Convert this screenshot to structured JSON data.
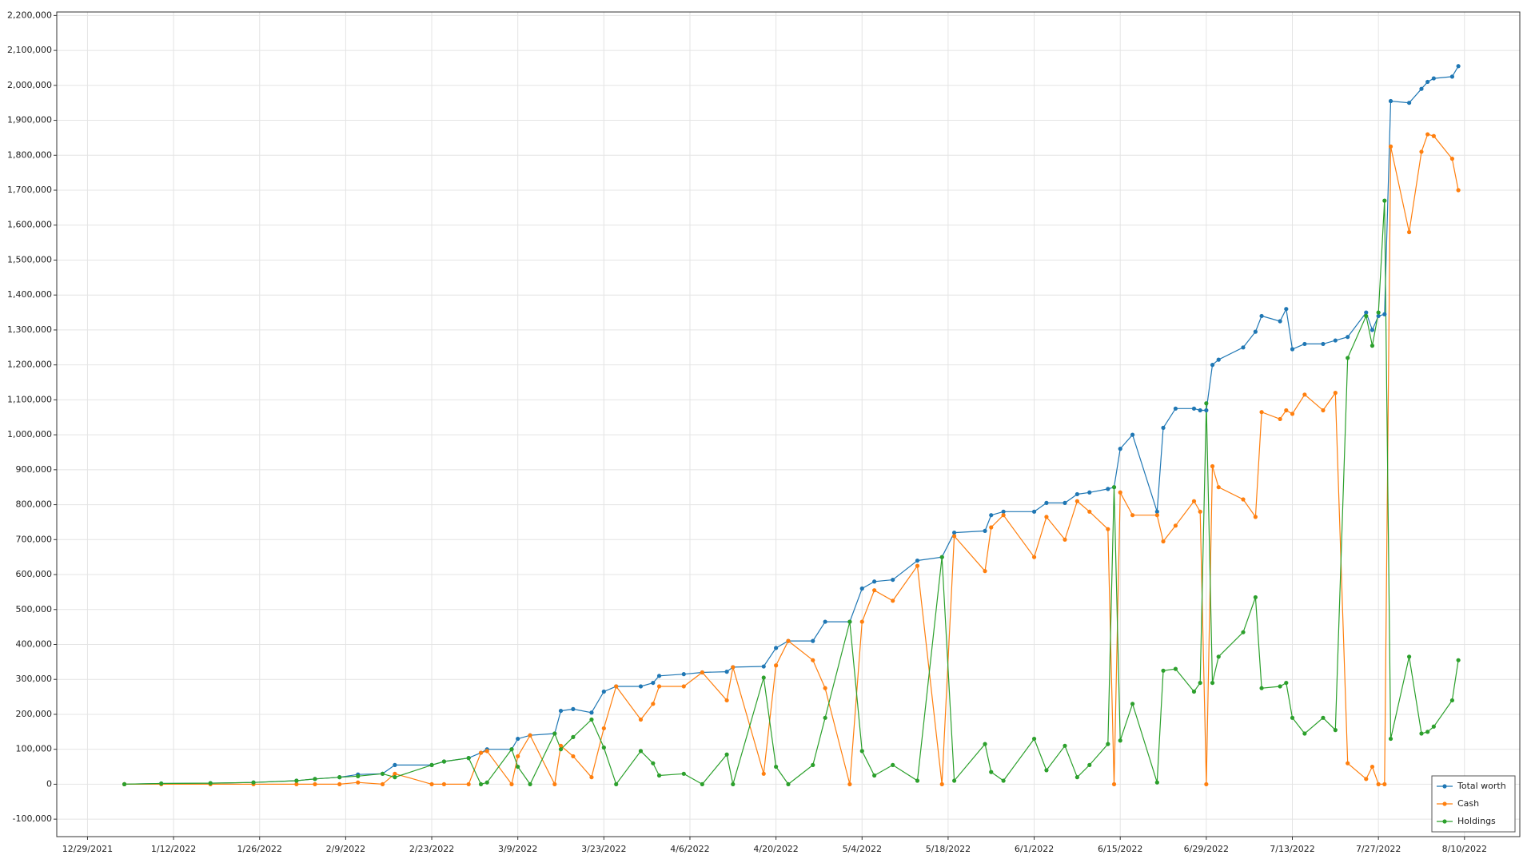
{
  "chart_data": {
    "type": "line",
    "x": [
      "1/4/2022",
      "1/10/2022",
      "1/18/2022",
      "1/25/2022",
      "2/1/2022",
      "2/4/2022",
      "2/8/2022",
      "2/11/2022",
      "2/15/2022",
      "2/17/2022",
      "2/23/2022",
      "2/25/2022",
      "3/1/2022",
      "3/3/2022",
      "3/4/2022",
      "3/8/2022",
      "3/9/2022",
      "3/11/2022",
      "3/15/2022",
      "3/16/2022",
      "3/18/2022",
      "3/21/2022",
      "3/23/2022",
      "3/25/2022",
      "3/29/2022",
      "3/31/2022",
      "4/1/2022",
      "4/5/2022",
      "4/8/2022",
      "4/12/2022",
      "4/13/2022",
      "4/18/2022",
      "4/20/2022",
      "4/22/2022",
      "4/26/2022",
      "4/28/2022",
      "5/2/2022",
      "5/4/2022",
      "5/6/2022",
      "5/9/2022",
      "5/13/2022",
      "5/17/2022",
      "5/19/2022",
      "5/24/2022",
      "5/25/2022",
      "5/27/2022",
      "6/1/2022",
      "6/3/2022",
      "6/6/2022",
      "6/8/2022",
      "6/10/2022",
      "6/13/2022",
      "6/14/2022",
      "6/15/2022",
      "6/17/2022",
      "6/21/2022",
      "6/22/2022",
      "6/24/2022",
      "6/27/2022",
      "6/28/2022",
      "6/29/2022",
      "6/30/2022",
      "7/1/2022",
      "7/5/2022",
      "7/7/2022",
      "7/8/2022",
      "7/11/2022",
      "7/12/2022",
      "7/13/2022",
      "7/15/2022",
      "7/18/2022",
      "7/20/2022",
      "7/22/2022",
      "7/25/2022",
      "7/26/2022",
      "7/27/2022",
      "7/28/2022",
      "7/29/2022",
      "8/1/2022",
      "8/3/2022",
      "8/4/2022",
      "8/5/2022",
      "8/8/2022",
      "8/9/2022"
    ],
    "series": [
      {
        "name": "Total worth",
        "color": "#1f77b4",
        "values": [
          0,
          2000,
          3000,
          5000,
          10000,
          15000,
          20000,
          28000,
          30000,
          55000,
          55000,
          65000,
          75000,
          90000,
          100000,
          100000,
          130000,
          140000,
          145000,
          210000,
          215000,
          205000,
          265000,
          280000,
          280000,
          290000,
          310000,
          315000,
          320000,
          322000,
          335000,
          337000,
          390000,
          410000,
          410000,
          465000,
          465000,
          560000,
          580000,
          585000,
          640000,
          650000,
          720000,
          725000,
          770000,
          780000,
          780000,
          805000,
          805000,
          830000,
          835000,
          845000,
          850000,
          960000,
          1000000,
          780000,
          1020000,
          1075000,
          1075000,
          1070000,
          1070000,
          1200000,
          1215000,
          1250000,
          1295000,
          1340000,
          1325000,
          1360000,
          1245000,
          1260000,
          1260000,
          1270000,
          1280000,
          1350000,
          1300000,
          1340000,
          1345000,
          1955000,
          1950000,
          1990000,
          2010000,
          2020000,
          2025000,
          2055000
        ]
      },
      {
        "name": "Cash",
        "color": "#ff7f0e",
        "values": [
          0,
          0,
          0,
          0,
          0,
          0,
          0,
          5000,
          0,
          30000,
          0,
          0,
          0,
          90000,
          95000,
          0,
          80000,
          140000,
          0,
          110000,
          80000,
          20000,
          160000,
          280000,
          185000,
          230000,
          280000,
          280000,
          320000,
          240000,
          335000,
          30000,
          340000,
          410000,
          355000,
          275000,
          0,
          465000,
          555000,
          525000,
          625000,
          0,
          710000,
          610000,
          735000,
          770000,
          650000,
          765000,
          700000,
          810000,
          780000,
          730000,
          0,
          835000,
          770000,
          770000,
          695000,
          740000,
          810000,
          780000,
          0,
          910000,
          850000,
          815000,
          765000,
          1065000,
          1045000,
          1070000,
          1060000,
          1115000,
          1070000,
          1120000,
          60000,
          15000,
          50000,
          0,
          0,
          1825000,
          1580000,
          1810000,
          1860000,
          1855000,
          1790000,
          1700000
        ]
      },
      {
        "name": "Holdings",
        "color": "#2ca02c",
        "values": [
          0,
          2000,
          3000,
          5000,
          10000,
          15000,
          20000,
          23000,
          30000,
          20000,
          55000,
          65000,
          75000,
          0,
          5000,
          100000,
          50000,
          0,
          145000,
          100000,
          135000,
          185000,
          105000,
          0,
          95000,
          60000,
          25000,
          30000,
          0,
          85000,
          0,
          305000,
          50000,
          0,
          55000,
          190000,
          465000,
          95000,
          25000,
          55000,
          10000,
          650000,
          10000,
          115000,
          35000,
          10000,
          130000,
          40000,
          110000,
          20000,
          55000,
          115000,
          850000,
          125000,
          230000,
          5000,
          325000,
          330000,
          265000,
          290000,
          1090000,
          290000,
          365000,
          435000,
          535000,
          275000,
          280000,
          290000,
          190000,
          145000,
          190000,
          155000,
          1220000,
          1340000,
          1255000,
          1350000,
          1670000,
          130000,
          365000,
          145000,
          150000,
          165000,
          240000,
          355000
        ]
      }
    ],
    "xlim": [
      "12/24/2021",
      "8/19/2022"
    ],
    "xticks": [
      "12/29/2021",
      "1/12/2022",
      "1/26/2022",
      "2/9/2022",
      "2/23/2022",
      "3/9/2022",
      "3/23/2022",
      "4/6/2022",
      "4/20/2022",
      "5/4/2022",
      "5/18/2022",
      "6/1/2022",
      "6/15/2022",
      "6/29/2022",
      "7/13/2022",
      "7/27/2022",
      "8/10/2022"
    ],
    "ylim": [
      -150000,
      2210000
    ],
    "yticks": [
      {
        "value": -100000,
        "label": "-100,000"
      },
      0,
      {
        "value": 100000,
        "label": "100,000"
      },
      {
        "value": 200000,
        "label": "200,000"
      },
      {
        "value": 300000,
        "label": "300,000"
      },
      {
        "value": 400000,
        "label": "400,000"
      },
      {
        "value": 500000,
        "label": "500,000"
      },
      {
        "value": 600000,
        "label": "600,000"
      },
      {
        "value": 700000,
        "label": "700,000"
      },
      {
        "value": 800000,
        "label": "800,000"
      },
      {
        "value": 900000,
        "label": "900,000"
      },
      {
        "value": 1000000,
        "label": "1,000,000"
      },
      {
        "value": 1100000,
        "label": "1,100,000"
      },
      {
        "value": 1200000,
        "label": "1,200,000"
      },
      {
        "value": 1300000,
        "label": "1,300,000"
      },
      {
        "value": 1400000,
        "label": "1,400,000"
      },
      {
        "value": 1500000,
        "label": "1,500,000"
      },
      {
        "value": 1600000,
        "label": "1,600,000"
      },
      {
        "value": 1700000,
        "label": "1,700,000"
      },
      {
        "value": 1800000,
        "label": "1,800,000"
      },
      {
        "value": 1900000,
        "label": "1,900,000"
      },
      {
        "value": 2000000,
        "label": "2,000,000"
      },
      {
        "value": 2100000,
        "label": "2,100,000"
      },
      {
        "value": 2200000,
        "label": "2,200,000"
      }
    ],
    "grid": true,
    "markers": true,
    "legend": "lower right"
  }
}
